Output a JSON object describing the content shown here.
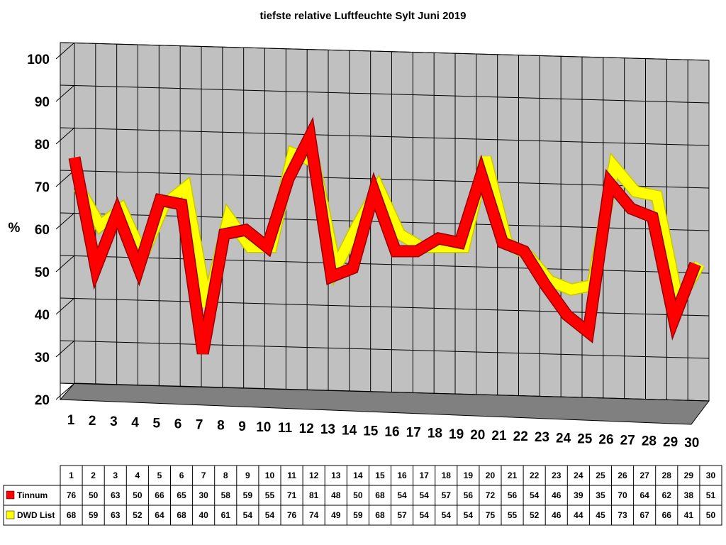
{
  "chart_data": {
    "type": "line",
    "title": "tiefste relative Luftfeuchte Sylt Juni 2019",
    "xlabel": "",
    "ylabel": "%",
    "ylim": [
      20,
      100
    ],
    "yticks": [
      100,
      90,
      80,
      70,
      60,
      50,
      40,
      30,
      20
    ],
    "categories": [
      "1",
      "2",
      "3",
      "4",
      "5",
      "6",
      "7",
      "8",
      "9",
      "10",
      "11",
      "12",
      "13",
      "14",
      "15",
      "16",
      "17",
      "18",
      "19",
      "20",
      "21",
      "22",
      "23",
      "24",
      "25",
      "26",
      "27",
      "28",
      "29",
      "30"
    ],
    "series": [
      {
        "name": "Tinnum",
        "color": "#ff0000",
        "values": [
          76,
          50,
          63,
          50,
          66,
          65,
          30,
          58,
          59,
          55,
          71,
          81,
          48,
          50,
          68,
          54,
          54,
          57,
          56,
          72,
          56,
          54,
          46,
          39,
          35,
          70,
          64,
          62,
          38,
          51
        ]
      },
      {
        "name": "DWD List",
        "color": "#ffff00",
        "values": [
          68,
          59,
          63,
          52,
          64,
          68,
          40,
          61,
          54,
          54,
          76,
          74,
          49,
          59,
          68,
          57,
          54,
          54,
          54,
          75,
          55,
          52,
          46,
          44,
          45,
          73,
          67,
          66,
          41,
          50
        ]
      }
    ],
    "grid": true,
    "style": "3d",
    "legend": "data-table"
  }
}
